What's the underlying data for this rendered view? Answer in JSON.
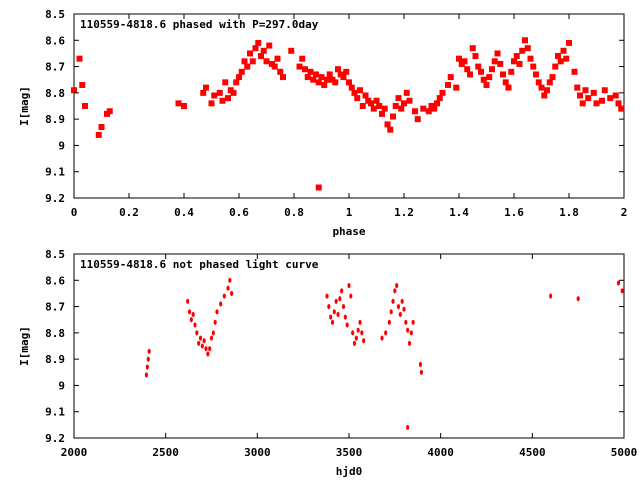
{
  "chart_data": [
    {
      "type": "scatter",
      "title": "110559-4818.6 phased with P=297.0day",
      "xlabel": "phase",
      "ylabel": "I[mag]",
      "xlim": [
        0,
        2
      ],
      "ylim": [
        9.2,
        8.5
      ],
      "y_inverted": true,
      "grid": false,
      "xticks": [
        "0",
        "0.2",
        "0.4",
        "0.6",
        "0.8",
        "1",
        "1.2",
        "1.4",
        "1.6",
        "1.8",
        "2"
      ],
      "yticks": [
        "8.5",
        "8.6",
        "8.7",
        "8.8",
        "8.9",
        "9",
        "9.1",
        "9.2"
      ],
      "marker_color": "#ff0000",
      "points": [
        [
          0.0,
          8.79
        ],
        [
          0.02,
          8.67
        ],
        [
          0.03,
          8.77
        ],
        [
          0.04,
          8.85
        ],
        [
          0.09,
          8.96
        ],
        [
          0.1,
          8.93
        ],
        [
          0.12,
          8.88
        ],
        [
          0.13,
          8.87
        ],
        [
          0.38,
          8.84
        ],
        [
          0.4,
          8.85
        ],
        [
          0.47,
          8.8
        ],
        [
          0.48,
          8.78
        ],
        [
          0.5,
          8.84
        ],
        [
          0.51,
          8.81
        ],
        [
          0.53,
          8.8
        ],
        [
          0.54,
          8.83
        ],
        [
          0.55,
          8.76
        ],
        [
          0.56,
          8.82
        ],
        [
          0.57,
          8.79
        ],
        [
          0.58,
          8.8
        ],
        [
          0.59,
          8.76
        ],
        [
          0.6,
          8.74
        ],
        [
          0.61,
          8.72
        ],
        [
          0.62,
          8.68
        ],
        [
          0.63,
          8.7
        ],
        [
          0.64,
          8.65
        ],
        [
          0.65,
          8.68
        ],
        [
          0.66,
          8.63
        ],
        [
          0.67,
          8.61
        ],
        [
          0.68,
          8.66
        ],
        [
          0.69,
          8.64
        ],
        [
          0.7,
          8.68
        ],
        [
          0.71,
          8.62
        ],
        [
          0.72,
          8.69
        ],
        [
          0.73,
          8.7
        ],
        [
          0.74,
          8.67
        ],
        [
          0.75,
          8.72
        ],
        [
          0.76,
          8.74
        ],
        [
          0.79,
          8.64
        ],
        [
          0.82,
          8.7
        ],
        [
          0.83,
          8.67
        ],
        [
          0.84,
          8.71
        ],
        [
          0.85,
          8.74
        ],
        [
          0.86,
          8.72
        ],
        [
          0.87,
          8.75
        ],
        [
          0.88,
          8.73
        ],
        [
          0.89,
          8.76
        ],
        [
          0.9,
          8.74
        ],
        [
          0.91,
          8.77
        ],
        [
          0.92,
          8.75
        ],
        [
          0.93,
          8.73
        ],
        [
          0.94,
          8.75
        ],
        [
          0.95,
          8.76
        ],
        [
          0.96,
          8.71
        ],
        [
          0.97,
          8.73
        ],
        [
          0.98,
          8.74
        ],
        [
          0.99,
          8.72
        ],
        [
          1.0,
          8.76
        ],
        [
          1.01,
          8.78
        ],
        [
          1.02,
          8.8
        ],
        [
          1.03,
          8.82
        ],
        [
          1.04,
          8.79
        ],
        [
          1.05,
          8.85
        ],
        [
          1.06,
          8.81
        ],
        [
          1.07,
          8.83
        ],
        [
          1.08,
          8.84
        ],
        [
          1.09,
          8.86
        ],
        [
          1.1,
          8.83
        ],
        [
          1.11,
          8.85
        ],
        [
          1.12,
          8.88
        ],
        [
          1.13,
          8.86
        ],
        [
          1.14,
          8.92
        ],
        [
          1.15,
          8.94
        ],
        [
          1.16,
          8.89
        ],
        [
          1.17,
          8.85
        ],
        [
          1.18,
          8.82
        ],
        [
          1.19,
          8.86
        ],
        [
          1.2,
          8.84
        ],
        [
          1.21,
          8.8
        ],
        [
          1.22,
          8.83
        ],
        [
          1.24,
          8.87
        ],
        [
          1.25,
          8.9
        ],
        [
          1.27,
          8.86
        ],
        [
          1.29,
          8.87
        ],
        [
          1.3,
          8.85
        ],
        [
          1.31,
          8.86
        ],
        [
          1.32,
          8.84
        ],
        [
          1.33,
          8.82
        ],
        [
          1.34,
          8.8
        ],
        [
          1.36,
          8.77
        ],
        [
          1.37,
          8.74
        ],
        [
          1.39,
          8.78
        ],
        [
          1.4,
          8.67
        ],
        [
          1.41,
          8.69
        ],
        [
          1.42,
          8.68
        ],
        [
          1.43,
          8.71
        ],
        [
          1.44,
          8.73
        ],
        [
          1.45,
          8.63
        ],
        [
          1.46,
          8.66
        ],
        [
          1.47,
          8.7
        ],
        [
          1.48,
          8.72
        ],
        [
          1.49,
          8.75
        ],
        [
          1.5,
          8.77
        ],
        [
          1.51,
          8.74
        ],
        [
          1.52,
          8.71
        ],
        [
          1.53,
          8.68
        ],
        [
          1.54,
          8.65
        ],
        [
          1.55,
          8.69
        ],
        [
          1.56,
          8.73
        ],
        [
          1.57,
          8.76
        ],
        [
          1.58,
          8.78
        ],
        [
          1.59,
          8.72
        ],
        [
          1.6,
          8.68
        ],
        [
          1.61,
          8.66
        ],
        [
          1.62,
          8.69
        ],
        [
          1.63,
          8.64
        ],
        [
          1.64,
          8.6
        ],
        [
          1.65,
          8.63
        ],
        [
          1.66,
          8.67
        ],
        [
          1.67,
          8.7
        ],
        [
          1.68,
          8.73
        ],
        [
          1.69,
          8.76
        ],
        [
          1.7,
          8.78
        ],
        [
          1.71,
          8.81
        ],
        [
          1.72,
          8.79
        ],
        [
          1.73,
          8.76
        ],
        [
          1.74,
          8.74
        ],
        [
          1.75,
          8.7
        ],
        [
          1.76,
          8.66
        ],
        [
          1.77,
          8.68
        ],
        [
          1.78,
          8.64
        ],
        [
          1.79,
          8.67
        ],
        [
          1.8,
          8.61
        ],
        [
          1.82,
          8.72
        ],
        [
          1.83,
          8.78
        ],
        [
          1.84,
          8.81
        ],
        [
          1.85,
          8.84
        ],
        [
          1.86,
          8.79
        ],
        [
          1.87,
          8.82
        ],
        [
          1.89,
          8.8
        ],
        [
          1.9,
          8.84
        ],
        [
          1.92,
          8.83
        ],
        [
          1.93,
          8.79
        ],
        [
          1.95,
          8.82
        ],
        [
          1.97,
          8.81
        ],
        [
          1.98,
          8.84
        ],
        [
          1.99,
          8.86
        ],
        [
          0.89,
          9.16
        ]
      ]
    },
    {
      "type": "scatter",
      "title": "110559-4818.6 not phased light curve",
      "xlabel": "hjd0",
      "ylabel": "I[mag]",
      "xlim": [
        2000,
        5000
      ],
      "ylim": [
        9.2,
        8.5
      ],
      "y_inverted": true,
      "grid": false,
      "xticks": [
        "2000",
        "2500",
        "3000",
        "3500",
        "4000",
        "4500",
        "5000"
      ],
      "yticks": [
        "8.5",
        "8.6",
        "8.7",
        "8.8",
        "8.9",
        "9",
        "9.1",
        "9.2"
      ],
      "marker_color": "#ff0000",
      "points": [
        [
          2395,
          8.96
        ],
        [
          2400,
          8.93
        ],
        [
          2405,
          8.9
        ],
        [
          2410,
          8.87
        ],
        [
          2620,
          8.68
        ],
        [
          2630,
          8.72
        ],
        [
          2640,
          8.75
        ],
        [
          2650,
          8.73
        ],
        [
          2660,
          8.77
        ],
        [
          2670,
          8.8
        ],
        [
          2680,
          8.84
        ],
        [
          2690,
          8.82
        ],
        [
          2700,
          8.85
        ],
        [
          2710,
          8.83
        ],
        [
          2720,
          8.86
        ],
        [
          2730,
          8.88
        ],
        [
          2740,
          8.86
        ],
        [
          2750,
          8.82
        ],
        [
          2760,
          8.8
        ],
        [
          2770,
          8.76
        ],
        [
          2780,
          8.72
        ],
        [
          2800,
          8.69
        ],
        [
          2820,
          8.66
        ],
        [
          2840,
          8.63
        ],
        [
          2850,
          8.6
        ],
        [
          2860,
          8.65
        ],
        [
          3380,
          8.66
        ],
        [
          3390,
          8.7
        ],
        [
          3400,
          8.74
        ],
        [
          3410,
          8.76
        ],
        [
          3420,
          8.72
        ],
        [
          3430,
          8.68
        ],
        [
          3440,
          8.73
        ],
        [
          3450,
          8.67
        ],
        [
          3460,
          8.64
        ],
        [
          3470,
          8.7
        ],
        [
          3480,
          8.74
        ],
        [
          3490,
          8.77
        ],
        [
          3500,
          8.62
        ],
        [
          3510,
          8.66
        ],
        [
          3520,
          8.8
        ],
        [
          3530,
          8.84
        ],
        [
          3540,
          8.82
        ],
        [
          3550,
          8.79
        ],
        [
          3560,
          8.76
        ],
        [
          3570,
          8.8
        ],
        [
          3580,
          8.83
        ],
        [
          3680,
          8.82
        ],
        [
          3700,
          8.8
        ],
        [
          3720,
          8.76
        ],
        [
          3730,
          8.72
        ],
        [
          3740,
          8.68
        ],
        [
          3750,
          8.64
        ],
        [
          3760,
          8.62
        ],
        [
          3770,
          8.7
        ],
        [
          3780,
          8.73
        ],
        [
          3790,
          8.68
        ],
        [
          3800,
          8.71
        ],
        [
          3810,
          8.76
        ],
        [
          3820,
          8.79
        ],
        [
          3830,
          8.84
        ],
        [
          3840,
          8.8
        ],
        [
          3850,
          8.76
        ],
        [
          3820,
          9.16
        ],
        [
          3890,
          8.92
        ],
        [
          3895,
          8.95
        ],
        [
          4600,
          8.66
        ],
        [
          4750,
          8.67
        ],
        [
          4970,
          8.61
        ],
        [
          4990,
          8.64
        ]
      ]
    }
  ]
}
